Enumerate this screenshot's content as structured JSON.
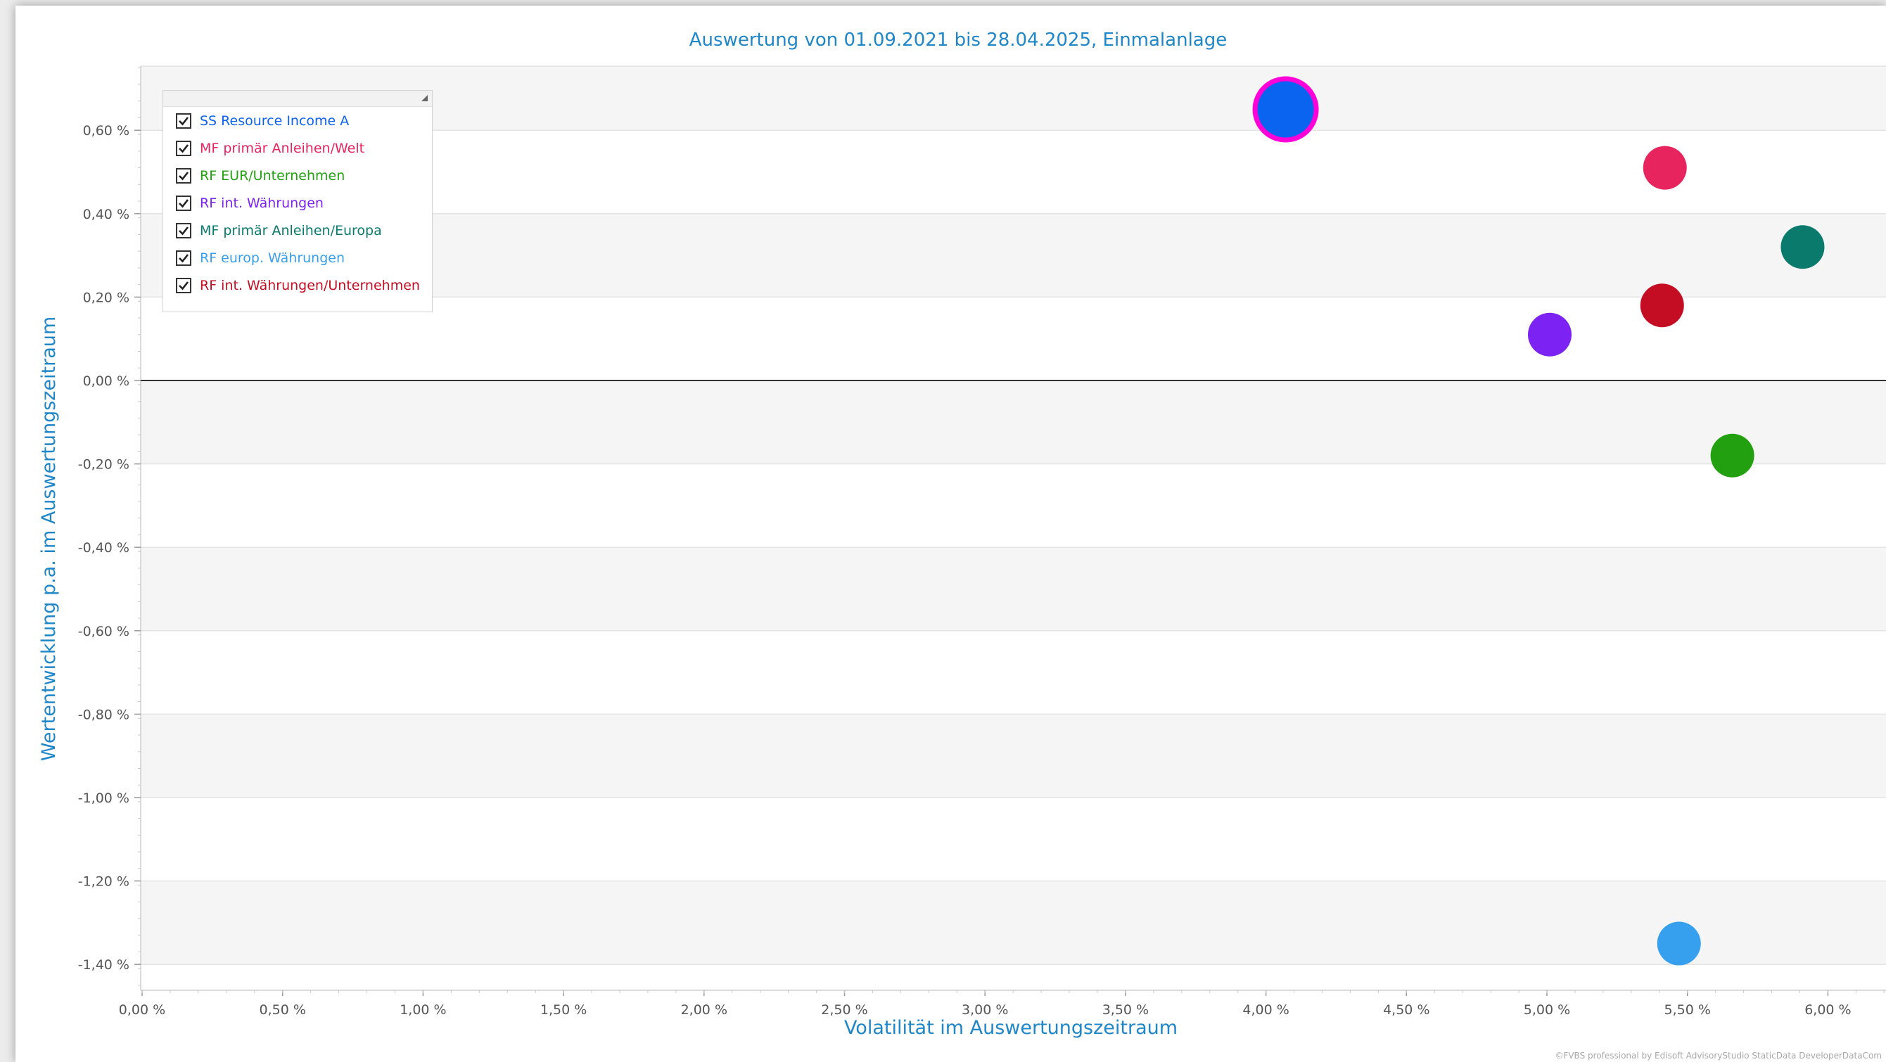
{
  "chart_data": {
    "type": "scatter",
    "title": "Auswertung von 01.09.2021 bis 28.04.2025, Einmalanlage",
    "xlabel": "Volatilität im Auswertungszeitraum",
    "ylabel": "Wertentwicklung p.a. im Auswertungszeitraum",
    "xlim": [
      0.0,
      6.2
    ],
    "ylim": [
      -1.45,
      0.76
    ],
    "x_ticks": [
      0.0,
      0.5,
      1.0,
      1.5,
      2.0,
      2.5,
      3.0,
      3.5,
      4.0,
      4.5,
      5.0,
      5.5,
      6.0
    ],
    "x_tick_labels": [
      "0,00 %",
      "0,50 %",
      "1,00 %",
      "1,50 %",
      "2,00 %",
      "2,50 %",
      "3,00 %",
      "3,50 %",
      "4,00 %",
      "4,50 %",
      "5,00 %",
      "5,50 %",
      "6,00 %"
    ],
    "y_ticks": [
      0.6,
      0.4,
      0.2,
      0.0,
      -0.2,
      -0.4,
      -0.6,
      -0.8,
      -1.0,
      -1.2,
      -1.4
    ],
    "y_tick_labels": [
      "0,60 %",
      "0,40 %",
      "0,20 %",
      "0,00 %",
      "-0,20 %",
      "-0,40 %",
      "-0,60 %",
      "-0,80 %",
      "-1,00 %",
      "-1,20 %",
      "-1,40 %"
    ],
    "grid": true,
    "legend_position": "top-left",
    "series": [
      {
        "name": "SS Resource Income A",
        "x": 4.07,
        "y": 0.65,
        "color": "#0a64f0",
        "highlight": "#ff00d8"
      },
      {
        "name": "MF primär Anleihen/Welt",
        "x": 5.42,
        "y": 0.51,
        "color": "#e8245e"
      },
      {
        "name": "RF EUR/Unternehmen",
        "x": 5.66,
        "y": -0.18,
        "color": "#22a010"
      },
      {
        "name": "RF int. Währungen",
        "x": 5.01,
        "y": 0.11,
        "color": "#7c22f2"
      },
      {
        "name": "MF primär Anleihen/Europa",
        "x": 5.91,
        "y": 0.32,
        "color": "#0a7a6c"
      },
      {
        "name": "RF europ. Währungen",
        "x": 5.47,
        "y": -1.35,
        "color": "#37a0ee"
      },
      {
        "name": "RF int. Währungen/Unternehmen",
        "x": 5.41,
        "y": 0.18,
        "color": "#c40c22"
      }
    ],
    "colors": {
      "title": "#1f86c8",
      "axis_label": "#1f86c8",
      "tick": "#555555",
      "zero_line": "#333333",
      "band": "#f5f5f5",
      "grid": "#e4e4e4"
    }
  },
  "copyright": "©FVBS professional by Edisoft AdvisoryStudio StaticData DeveloperDataCom"
}
